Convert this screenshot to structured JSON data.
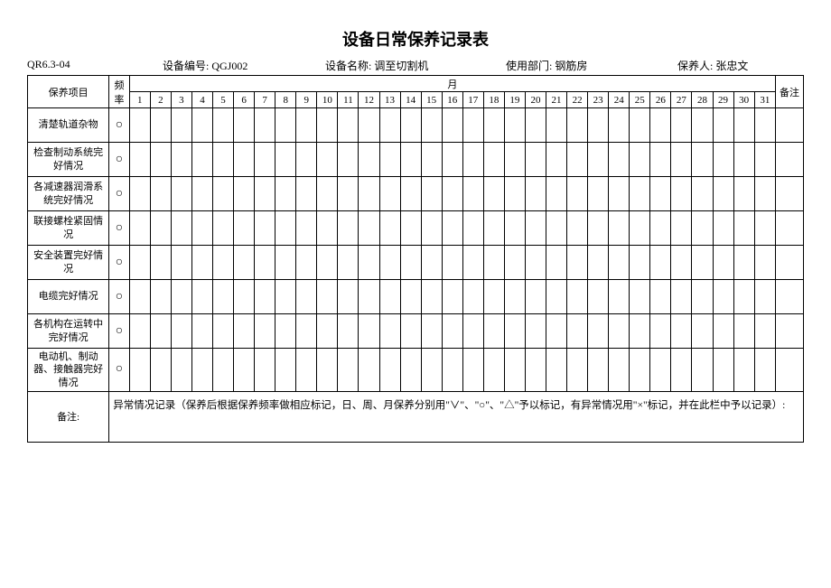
{
  "title": "设备日常保养记录表",
  "header": {
    "code_label": "QR6.3-04",
    "equip_no_label": "设备编号:",
    "equip_no_value": "QGJ002",
    "equip_name_label": "设备名称:",
    "equip_name_value": "调至切割机",
    "dept_label": "使用部门:",
    "dept_value": "钢筋房",
    "person_label": "保养人:",
    "person_value": "张忠文"
  },
  "columns": {
    "item": "保养项目",
    "freq": "频率",
    "month": "月",
    "note": "备注"
  },
  "days": [
    "1",
    "2",
    "3",
    "4",
    "5",
    "6",
    "7",
    "8",
    "9",
    "10",
    "11",
    "12",
    "13",
    "14",
    "15",
    "16",
    "17",
    "18",
    "19",
    "20",
    "21",
    "22",
    "23",
    "24",
    "25",
    "26",
    "27",
    "28",
    "29",
    "30",
    "31"
  ],
  "rows": [
    {
      "item": "清楚轨道杂物",
      "freq": "○"
    },
    {
      "item": "检查制动系统完好情况",
      "freq": "○"
    },
    {
      "item": "各减速器润滑系统完好情况",
      "freq": "○"
    },
    {
      "item": "联接螺栓紧固情况",
      "freq": "○"
    },
    {
      "item": "安全装置完好情况",
      "freq": "○"
    },
    {
      "item": "电缆完好情况",
      "freq": "○"
    },
    {
      "item": "各机构在运转中完好情况",
      "freq": "○"
    },
    {
      "item": "电动机、制动器、接触器完好情况",
      "freq": "○"
    }
  ],
  "notes": {
    "label": "备注:",
    "content": "异常情况记录（保养后根据保养频率做相应标记，日、周、月保养分别用\"∨\"、\"○\"、\"△\"予以标记，有异常情况用\"×\"标记，并在此栏中予以记录）:"
  }
}
